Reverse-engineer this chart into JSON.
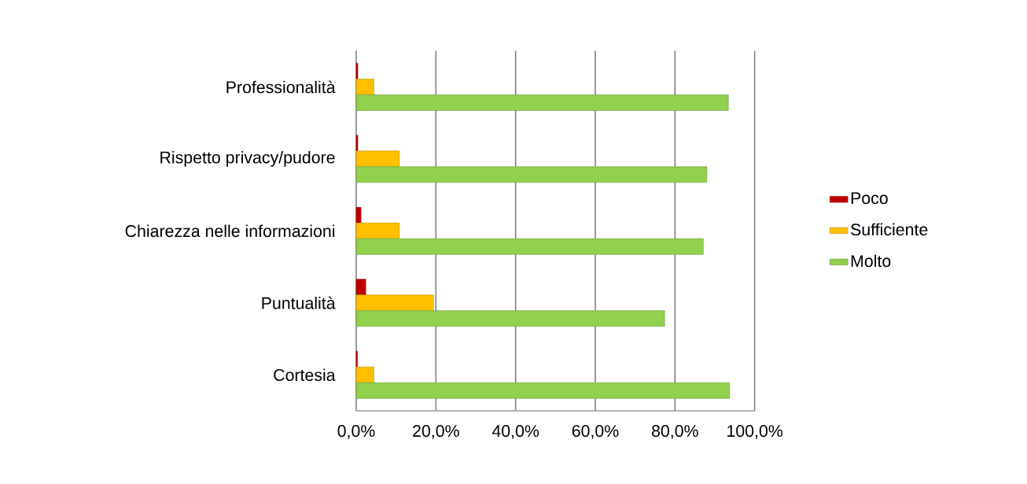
{
  "chart_data": {
    "type": "bar",
    "orientation": "horizontal",
    "categories": [
      "Professionalità",
      "Rispetto privacy/pudore",
      "Chiarezza nelle informazioni",
      "Puntualità",
      "Cortesia"
    ],
    "series": [
      {
        "name": "Poco",
        "color": "#c00000",
        "values": [
          0.4,
          0.4,
          1.2,
          2.4,
          0.3
        ]
      },
      {
        "name": "Sufficiente",
        "color": "#ffc000",
        "values": [
          4.4,
          10.8,
          10.8,
          19.4,
          4.4
        ]
      },
      {
        "name": "Molto",
        "color": "#92d050",
        "values": [
          93.4,
          88.0,
          87.1,
          77.4,
          93.7
        ]
      }
    ],
    "xlim": [
      0,
      100
    ],
    "xticks": [
      {
        "value": 0,
        "label": "0,0%"
      },
      {
        "value": 20,
        "label": "20,0%"
      },
      {
        "value": 40,
        "label": "40,0%"
      },
      {
        "value": 60,
        "label": "60,0%"
      },
      {
        "value": 80,
        "label": "80,0%"
      },
      {
        "value": 100,
        "label": "100,0%"
      }
    ],
    "grid": "x",
    "legend": "right"
  }
}
